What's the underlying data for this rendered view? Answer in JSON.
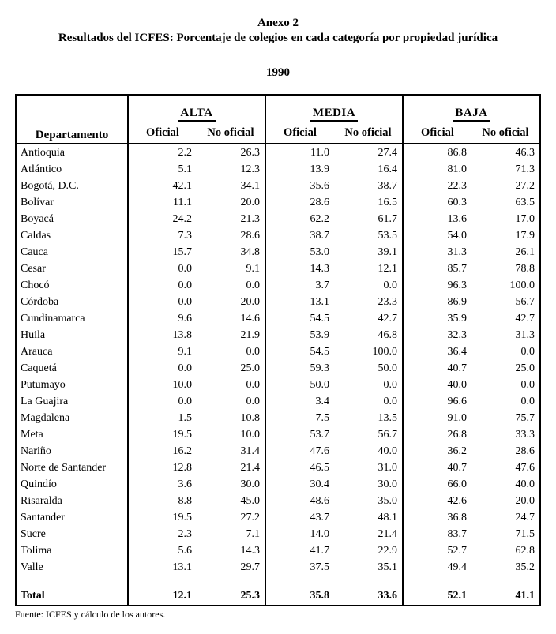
{
  "page": {
    "title_annex": "Anexo 2",
    "title_main": "Resultados del ICFES: Porcentaje de colegios en cada categoría por propiedad jurídica",
    "year": "1990",
    "source": "Fuente: ICFES y cálculo de los autores."
  },
  "table": {
    "department_header": "Departamento",
    "groups": [
      {
        "label": "ALTA",
        "sub": [
          "Oficial",
          "No oficial"
        ]
      },
      {
        "label": "MEDIA",
        "sub": [
          "Oficial",
          "No oficial"
        ]
      },
      {
        "label": "BAJA",
        "sub": [
          "Oficial",
          "No oficial"
        ]
      }
    ],
    "rows": [
      {
        "name": "Antioquia",
        "values": [
          "2.2",
          "26.3",
          "11.0",
          "27.4",
          "86.8",
          "46.3"
        ]
      },
      {
        "name": "Atlántico",
        "values": [
          "5.1",
          "12.3",
          "13.9",
          "16.4",
          "81.0",
          "71.3"
        ]
      },
      {
        "name": "Bogotá, D.C.",
        "values": [
          "42.1",
          "34.1",
          "35.6",
          "38.7",
          "22.3",
          "27.2"
        ]
      },
      {
        "name": "Bolívar",
        "values": [
          "11.1",
          "20.0",
          "28.6",
          "16.5",
          "60.3",
          "63.5"
        ]
      },
      {
        "name": "Boyacá",
        "values": [
          "24.2",
          "21.3",
          "62.2",
          "61.7",
          "13.6",
          "17.0"
        ]
      },
      {
        "name": "Caldas",
        "values": [
          "7.3",
          "28.6",
          "38.7",
          "53.5",
          "54.0",
          "17.9"
        ]
      },
      {
        "name": "Cauca",
        "values": [
          "15.7",
          "34.8",
          "53.0",
          "39.1",
          "31.3",
          "26.1"
        ]
      },
      {
        "name": "Cesar",
        "values": [
          "0.0",
          "9.1",
          "14.3",
          "12.1",
          "85.7",
          "78.8"
        ]
      },
      {
        "name": "Chocó",
        "values": [
          "0.0",
          "0.0",
          "3.7",
          "0.0",
          "96.3",
          "100.0"
        ]
      },
      {
        "name": "Córdoba",
        "values": [
          "0.0",
          "20.0",
          "13.1",
          "23.3",
          "86.9",
          "56.7"
        ]
      },
      {
        "name": "Cundinamarca",
        "values": [
          "9.6",
          "14.6",
          "54.5",
          "42.7",
          "35.9",
          "42.7"
        ]
      },
      {
        "name": "Huila",
        "values": [
          "13.8",
          "21.9",
          "53.9",
          "46.8",
          "32.3",
          "31.3"
        ]
      },
      {
        "name": "Arauca",
        "values": [
          "9.1",
          "0.0",
          "54.5",
          "100.0",
          "36.4",
          "0.0"
        ]
      },
      {
        "name": "Caquetá",
        "values": [
          "0.0",
          "25.0",
          "59.3",
          "50.0",
          "40.7",
          "25.0"
        ]
      },
      {
        "name": "Putumayo",
        "values": [
          "10.0",
          "0.0",
          "50.0",
          "0.0",
          "40.0",
          "0.0"
        ]
      },
      {
        "name": "La Guajira",
        "values": [
          "0.0",
          "0.0",
          "3.4",
          "0.0",
          "96.6",
          "0.0"
        ]
      },
      {
        "name": "Magdalena",
        "values": [
          "1.5",
          "10.8",
          "7.5",
          "13.5",
          "91.0",
          "75.7"
        ]
      },
      {
        "name": "Meta",
        "values": [
          "19.5",
          "10.0",
          "53.7",
          "56.7",
          "26.8",
          "33.3"
        ]
      },
      {
        "name": "Nariño",
        "values": [
          "16.2",
          "31.4",
          "47.6",
          "40.0",
          "36.2",
          "28.6"
        ]
      },
      {
        "name": "Norte de Santander",
        "values": [
          "12.8",
          "21.4",
          "46.5",
          "31.0",
          "40.7",
          "47.6"
        ]
      },
      {
        "name": "Quindío",
        "values": [
          "3.6",
          "30.0",
          "30.4",
          "30.0",
          "66.0",
          "40.0"
        ]
      },
      {
        "name": "Risaralda",
        "values": [
          "8.8",
          "45.0",
          "48.6",
          "35.0",
          "42.6",
          "20.0"
        ]
      },
      {
        "name": "Santander",
        "values": [
          "19.5",
          "27.2",
          "43.7",
          "48.1",
          "36.8",
          "24.7"
        ]
      },
      {
        "name": "Sucre",
        "values": [
          "2.3",
          "7.1",
          "14.0",
          "21.4",
          "83.7",
          "71.5"
        ]
      },
      {
        "name": "Tolima",
        "values": [
          "5.6",
          "14.3",
          "41.7",
          "22.9",
          "52.7",
          "62.8"
        ]
      },
      {
        "name": "Valle",
        "values": [
          "13.1",
          "29.7",
          "37.5",
          "35.1",
          "49.4",
          "35.2"
        ]
      },
      {
        "name": "Total",
        "values": [
          "12.1",
          "25.3",
          "35.8",
          "33.6",
          "52.1",
          "41.1"
        ],
        "is_total": true
      }
    ]
  }
}
